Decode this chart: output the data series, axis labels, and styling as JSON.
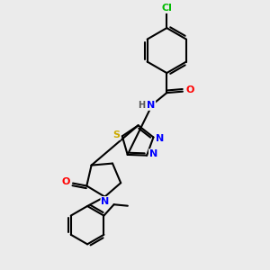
{
  "background_color": "#ebebeb",
  "bond_color": "#000000",
  "atom_colors": {
    "C": "#000000",
    "N": "#0000ff",
    "O": "#ff0000",
    "S": "#ccaa00",
    "Cl": "#00bb00",
    "H": "#555555"
  },
  "font_size": 8,
  "bond_width": 1.5,
  "dbo": 0.09
}
